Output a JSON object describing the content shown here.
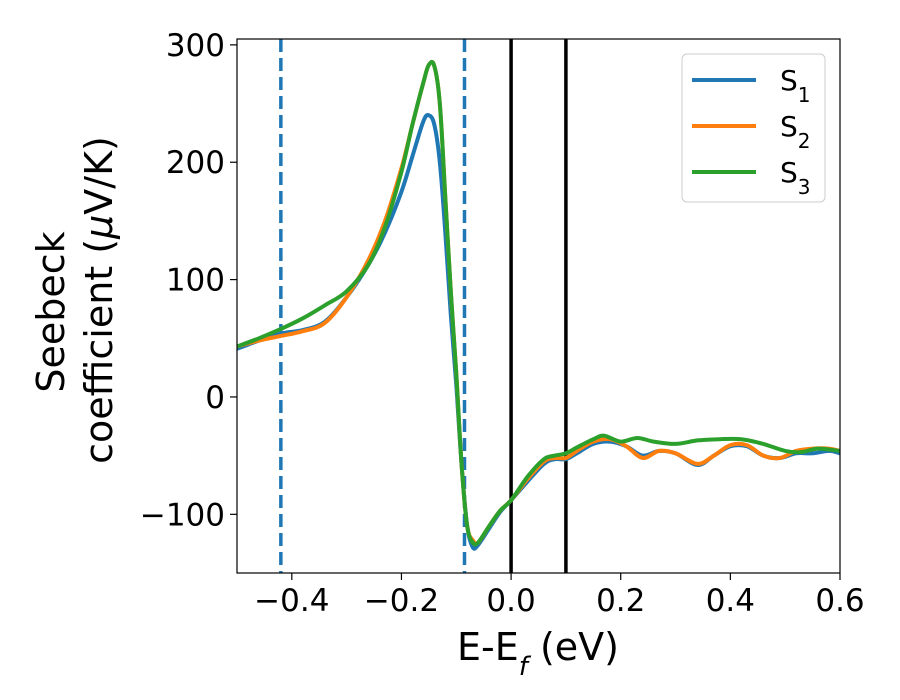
{
  "chart_data": {
    "type": "line",
    "xlabel": {
      "main": "E-E",
      "sub": "f",
      "unit": " (eV)"
    },
    "ylabel": {
      "line1": "Seebeck",
      "line2_prefix": "coefficient  (",
      "line2_mu": "μ",
      "line2_suffix": "V/K)"
    },
    "xlim": [
      -0.5,
      0.6
    ],
    "ylim": [
      -150,
      305
    ],
    "xticks": [
      -0.4,
      -0.2,
      0.0,
      0.2,
      0.4,
      0.6
    ],
    "xtick_labels": [
      "−0.4",
      "−0.2",
      "0.0",
      "0.2",
      "0.4",
      "0.6"
    ],
    "yticks": [
      -100,
      0,
      100,
      200,
      300
    ],
    "ytick_labels": [
      "−100",
      "0",
      "100",
      "200",
      "300"
    ],
    "grid": false,
    "legend_position": "top-right",
    "vlines": [
      {
        "x": -0.42,
        "style": "dashed",
        "color": "#1f77b4"
      },
      {
        "x": -0.085,
        "style": "dashed",
        "color": "#1f77b4"
      },
      {
        "x": 0.0,
        "style": "solid",
        "color": "#000000"
      },
      {
        "x": 0.1,
        "style": "solid",
        "color": "#000000"
      }
    ],
    "series": [
      {
        "name": "S",
        "name_sub": "1",
        "color": "#1f77b4",
        "points": [
          [
            -0.5,
            41
          ],
          [
            -0.46,
            48
          ],
          [
            -0.42,
            54
          ],
          [
            -0.38,
            57
          ],
          [
            -0.34,
            64
          ],
          [
            -0.3,
            85
          ],
          [
            -0.26,
            113
          ],
          [
            -0.23,
            140
          ],
          [
            -0.2,
            175
          ],
          [
            -0.18,
            205
          ],
          [
            -0.16,
            235
          ],
          [
            -0.15,
            240
          ],
          [
            -0.14,
            232
          ],
          [
            -0.13,
            200
          ],
          [
            -0.12,
            140
          ],
          [
            -0.11,
            70
          ],
          [
            -0.1,
            10
          ],
          [
            -0.09,
            -60
          ],
          [
            -0.08,
            -110
          ],
          [
            -0.07,
            -128
          ],
          [
            -0.06,
            -126
          ],
          [
            -0.04,
            -112
          ],
          [
            -0.02,
            -98
          ],
          [
            0.0,
            -88
          ],
          [
            0.03,
            -72
          ],
          [
            0.06,
            -57
          ],
          [
            0.08,
            -53
          ],
          [
            0.1,
            -53
          ],
          [
            0.12,
            -48
          ],
          [
            0.15,
            -40
          ],
          [
            0.18,
            -38
          ],
          [
            0.21,
            -42
          ],
          [
            0.24,
            -50
          ],
          [
            0.27,
            -46
          ],
          [
            0.3,
            -48
          ],
          [
            0.34,
            -58
          ],
          [
            0.37,
            -50
          ],
          [
            0.4,
            -42
          ],
          [
            0.43,
            -42
          ],
          [
            0.46,
            -50
          ],
          [
            0.49,
            -52
          ],
          [
            0.52,
            -48
          ],
          [
            0.55,
            -48
          ],
          [
            0.58,
            -46
          ],
          [
            0.6,
            -48
          ]
        ]
      },
      {
        "name": "S",
        "name_sub": "2",
        "color": "#ff7f0e",
        "points": [
          [
            -0.5,
            43
          ],
          [
            -0.46,
            48
          ],
          [
            -0.42,
            52
          ],
          [
            -0.38,
            56
          ],
          [
            -0.34,
            63
          ],
          [
            -0.3,
            85
          ],
          [
            -0.26,
            117
          ],
          [
            -0.23,
            150
          ],
          [
            -0.2,
            195
          ],
          [
            -0.18,
            232
          ],
          [
            -0.16,
            268
          ],
          [
            -0.15,
            283
          ],
          [
            -0.14,
            282
          ],
          [
            -0.13,
            250
          ],
          [
            -0.12,
            170
          ],
          [
            -0.11,
            90
          ],
          [
            -0.1,
            20
          ],
          [
            -0.09,
            -60
          ],
          [
            -0.08,
            -110
          ],
          [
            -0.07,
            -122
          ],
          [
            -0.06,
            -124
          ],
          [
            -0.04,
            -110
          ],
          [
            -0.02,
            -97
          ],
          [
            0.0,
            -88
          ],
          [
            0.03,
            -70
          ],
          [
            0.06,
            -55
          ],
          [
            0.08,
            -52
          ],
          [
            0.1,
            -52
          ],
          [
            0.12,
            -46
          ],
          [
            0.15,
            -38
          ],
          [
            0.18,
            -36
          ],
          [
            0.21,
            -42
          ],
          [
            0.24,
            -52
          ],
          [
            0.27,
            -46
          ],
          [
            0.3,
            -48
          ],
          [
            0.34,
            -57
          ],
          [
            0.37,
            -50
          ],
          [
            0.4,
            -41
          ],
          [
            0.43,
            -41
          ],
          [
            0.46,
            -50
          ],
          [
            0.49,
            -52
          ],
          [
            0.52,
            -46
          ],
          [
            0.55,
            -44
          ],
          [
            0.58,
            -44
          ],
          [
            0.6,
            -46
          ]
        ]
      },
      {
        "name": "S",
        "name_sub": "3",
        "color": "#2ca02c",
        "points": [
          [
            -0.5,
            43
          ],
          [
            -0.46,
            50
          ],
          [
            -0.42,
            58
          ],
          [
            -0.38,
            67
          ],
          [
            -0.34,
            78
          ],
          [
            -0.3,
            90
          ],
          [
            -0.26,
            113
          ],
          [
            -0.23,
            145
          ],
          [
            -0.2,
            192
          ],
          [
            -0.18,
            232
          ],
          [
            -0.16,
            268
          ],
          [
            -0.15,
            283
          ],
          [
            -0.14,
            282
          ],
          [
            -0.13,
            250
          ],
          [
            -0.12,
            170
          ],
          [
            -0.11,
            90
          ],
          [
            -0.1,
            20
          ],
          [
            -0.09,
            -60
          ],
          [
            -0.08,
            -110
          ],
          [
            -0.07,
            -124
          ],
          [
            -0.06,
            -124
          ],
          [
            -0.04,
            -110
          ],
          [
            -0.02,
            -97
          ],
          [
            0.0,
            -88
          ],
          [
            0.03,
            -68
          ],
          [
            0.06,
            -53
          ],
          [
            0.08,
            -50
          ],
          [
            0.1,
            -48
          ],
          [
            0.12,
            -43
          ],
          [
            0.15,
            -36
          ],
          [
            0.17,
            -33
          ],
          [
            0.2,
            -38
          ],
          [
            0.23,
            -35
          ],
          [
            0.26,
            -38
          ],
          [
            0.3,
            -40
          ],
          [
            0.34,
            -37
          ],
          [
            0.38,
            -36
          ],
          [
            0.42,
            -36
          ],
          [
            0.46,
            -40
          ],
          [
            0.5,
            -46
          ],
          [
            0.53,
            -47
          ],
          [
            0.56,
            -44
          ],
          [
            0.6,
            -46
          ]
        ]
      }
    ]
  }
}
